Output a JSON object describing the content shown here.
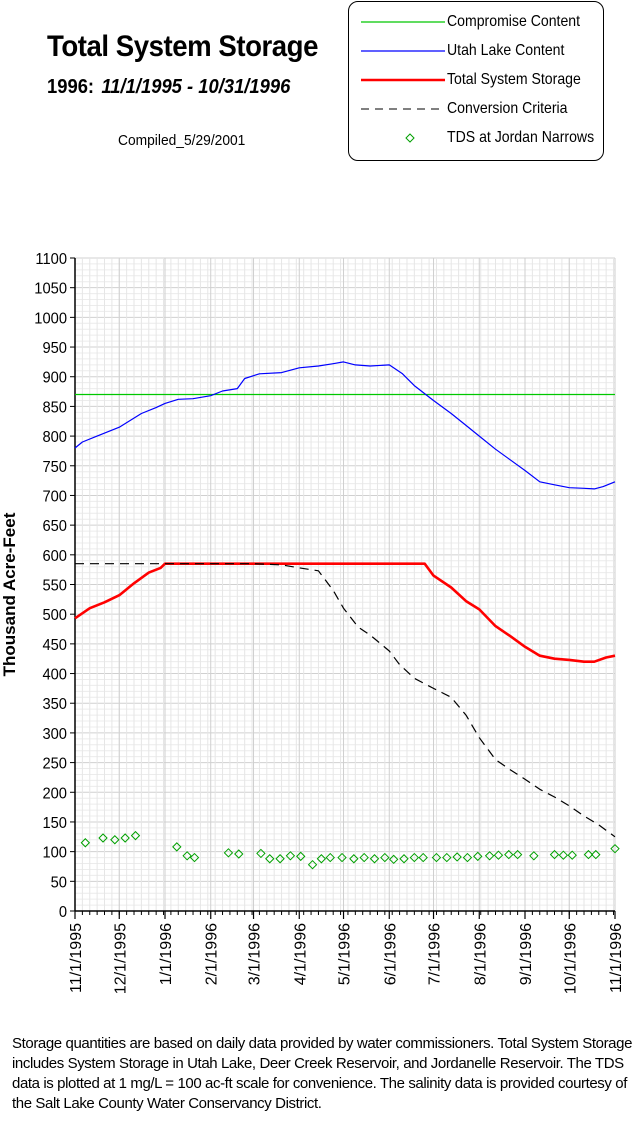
{
  "chart_data": {
    "type": "line",
    "title": "Total System Storage",
    "subtitle_year": "1996:",
    "subtitle_range": "11/1/1995 - 10/31/1996",
    "compiled": "Compiled_5/29/2001",
    "ylabel": "Thousand Acre-Feet",
    "xlabel": "",
    "ylim": [
      0,
      1100
    ],
    "y_ticks": [
      "0",
      "50",
      "100",
      "150",
      "200",
      "250",
      "300",
      "350",
      "400",
      "450",
      "500",
      "550",
      "600",
      "650",
      "700",
      "750",
      "800",
      "850",
      "900",
      "950",
      "1000",
      "1050",
      "1100"
    ],
    "x_tick_labels": [
      "11/1/1995",
      "12/1/1995",
      "1/1/1996",
      "2/1/1996",
      "3/1/1996",
      "4/1/1996",
      "5/1/1996",
      "6/1/1996",
      "7/1/1996",
      "8/1/1996",
      "9/1/1996",
      "10/1/1996",
      "11/1/1996"
    ],
    "x_tick_days": [
      0,
      30,
      61,
      92,
      121,
      152,
      182,
      213,
      243,
      274,
      305,
      335,
      366
    ],
    "grid": true,
    "legend_position": "top-right",
    "series": [
      {
        "name": "Compromise Content",
        "color": "#00c800",
        "style": "solid",
        "points": [
          [
            0,
            870
          ],
          [
            366,
            870
          ]
        ]
      },
      {
        "name": "Utah Lake Content",
        "color": "#0000ff",
        "style": "solid",
        "points": [
          [
            0,
            780
          ],
          [
            5,
            790
          ],
          [
            15,
            800
          ],
          [
            30,
            815
          ],
          [
            45,
            838
          ],
          [
            55,
            848
          ],
          [
            61,
            855
          ],
          [
            70,
            862
          ],
          [
            80,
            863
          ],
          [
            92,
            868
          ],
          [
            100,
            876
          ],
          [
            110,
            880
          ],
          [
            115,
            897
          ],
          [
            125,
            905
          ],
          [
            140,
            907
          ],
          [
            152,
            915
          ],
          [
            165,
            918
          ],
          [
            175,
            922
          ],
          [
            182,
            925
          ],
          [
            190,
            920
          ],
          [
            200,
            918
          ],
          [
            213,
            920
          ],
          [
            222,
            905
          ],
          [
            230,
            885
          ],
          [
            243,
            860
          ],
          [
            255,
            838
          ],
          [
            265,
            818
          ],
          [
            274,
            800
          ],
          [
            285,
            778
          ],
          [
            295,
            760
          ],
          [
            305,
            742
          ],
          [
            315,
            723
          ],
          [
            325,
            718
          ],
          [
            335,
            713
          ],
          [
            345,
            712
          ],
          [
            352,
            711
          ],
          [
            358,
            715
          ],
          [
            366,
            723
          ]
        ]
      },
      {
        "name": "Total System Storage",
        "color": "#ff0000",
        "style": "solid",
        "points": [
          [
            0,
            493
          ],
          [
            10,
            510
          ],
          [
            20,
            520
          ],
          [
            30,
            532
          ],
          [
            40,
            552
          ],
          [
            50,
            570
          ],
          [
            58,
            578
          ],
          [
            61,
            585
          ],
          [
            90,
            585
          ],
          [
            120,
            585
          ],
          [
            150,
            585
          ],
          [
            180,
            585
          ],
          [
            210,
            585
          ],
          [
            237,
            585
          ],
          [
            243,
            565
          ],
          [
            255,
            545
          ],
          [
            265,
            522
          ],
          [
            274,
            508
          ],
          [
            285,
            480
          ],
          [
            295,
            463
          ],
          [
            305,
            445
          ],
          [
            315,
            430
          ],
          [
            325,
            425
          ],
          [
            335,
            423
          ],
          [
            345,
            420
          ],
          [
            352,
            420
          ],
          [
            360,
            427
          ],
          [
            366,
            430
          ]
        ]
      },
      {
        "name": "Conversion Criteria",
        "color": "#000000",
        "style": "dashed",
        "points": [
          [
            0,
            585
          ],
          [
            30,
            585
          ],
          [
            61,
            585
          ],
          [
            92,
            585
          ],
          [
            121,
            585
          ],
          [
            140,
            583
          ],
          [
            152,
            578
          ],
          [
            165,
            573
          ],
          [
            175,
            540
          ],
          [
            182,
            510
          ],
          [
            192,
            478
          ],
          [
            200,
            465
          ],
          [
            213,
            438
          ],
          [
            220,
            415
          ],
          [
            230,
            392
          ],
          [
            243,
            375
          ],
          [
            255,
            360
          ],
          [
            265,
            330
          ],
          [
            274,
            292
          ],
          [
            285,
            255
          ],
          [
            295,
            238
          ],
          [
            305,
            222
          ],
          [
            315,
            205
          ],
          [
            325,
            192
          ],
          [
            335,
            177
          ],
          [
            345,
            160
          ],
          [
            355,
            145
          ],
          [
            366,
            125
          ]
        ]
      },
      {
        "name": "TDS at Jordan Narrows",
        "color": "#00a000",
        "style": "marker",
        "points": [
          [
            7,
            115
          ],
          [
            19,
            123
          ],
          [
            27,
            120
          ],
          [
            34,
            123
          ],
          [
            41,
            127
          ],
          [
            69,
            108
          ],
          [
            76,
            93
          ],
          [
            81,
            90
          ],
          [
            104,
            98
          ],
          [
            111,
            96
          ],
          [
            126,
            97
          ],
          [
            132,
            88
          ],
          [
            139,
            88
          ],
          [
            146,
            93
          ],
          [
            153,
            92
          ],
          [
            161,
            78
          ],
          [
            167,
            88
          ],
          [
            173,
            90
          ],
          [
            181,
            90
          ],
          [
            189,
            88
          ],
          [
            196,
            90
          ],
          [
            203,
            88
          ],
          [
            210,
            90
          ],
          [
            216,
            87
          ],
          [
            223,
            88
          ],
          [
            230,
            90
          ],
          [
            236,
            90
          ],
          [
            245,
            90
          ],
          [
            252,
            90
          ],
          [
            259,
            91
          ],
          [
            266,
            90
          ],
          [
            273,
            92
          ],
          [
            281,
            93
          ],
          [
            287,
            94
          ],
          [
            294,
            95
          ],
          [
            300,
            95
          ],
          [
            311,
            93
          ],
          [
            325,
            95
          ],
          [
            331,
            94
          ],
          [
            337,
            94
          ],
          [
            348,
            95
          ],
          [
            353,
            95
          ],
          [
            366,
            105
          ]
        ]
      }
    ]
  },
  "footnote": "Storage quantities are based on daily data provided by water commissioners.  Total System Storage includes System Storage in Utah Lake, Deer Creek Reservoir, and Jordanelle Reservoir.  The TDS data is plotted at 1 mg/L = 100 ac-ft scale for convenience.  The salinity data is provided courtesy of the Salt Lake County Water Conservancy District."
}
